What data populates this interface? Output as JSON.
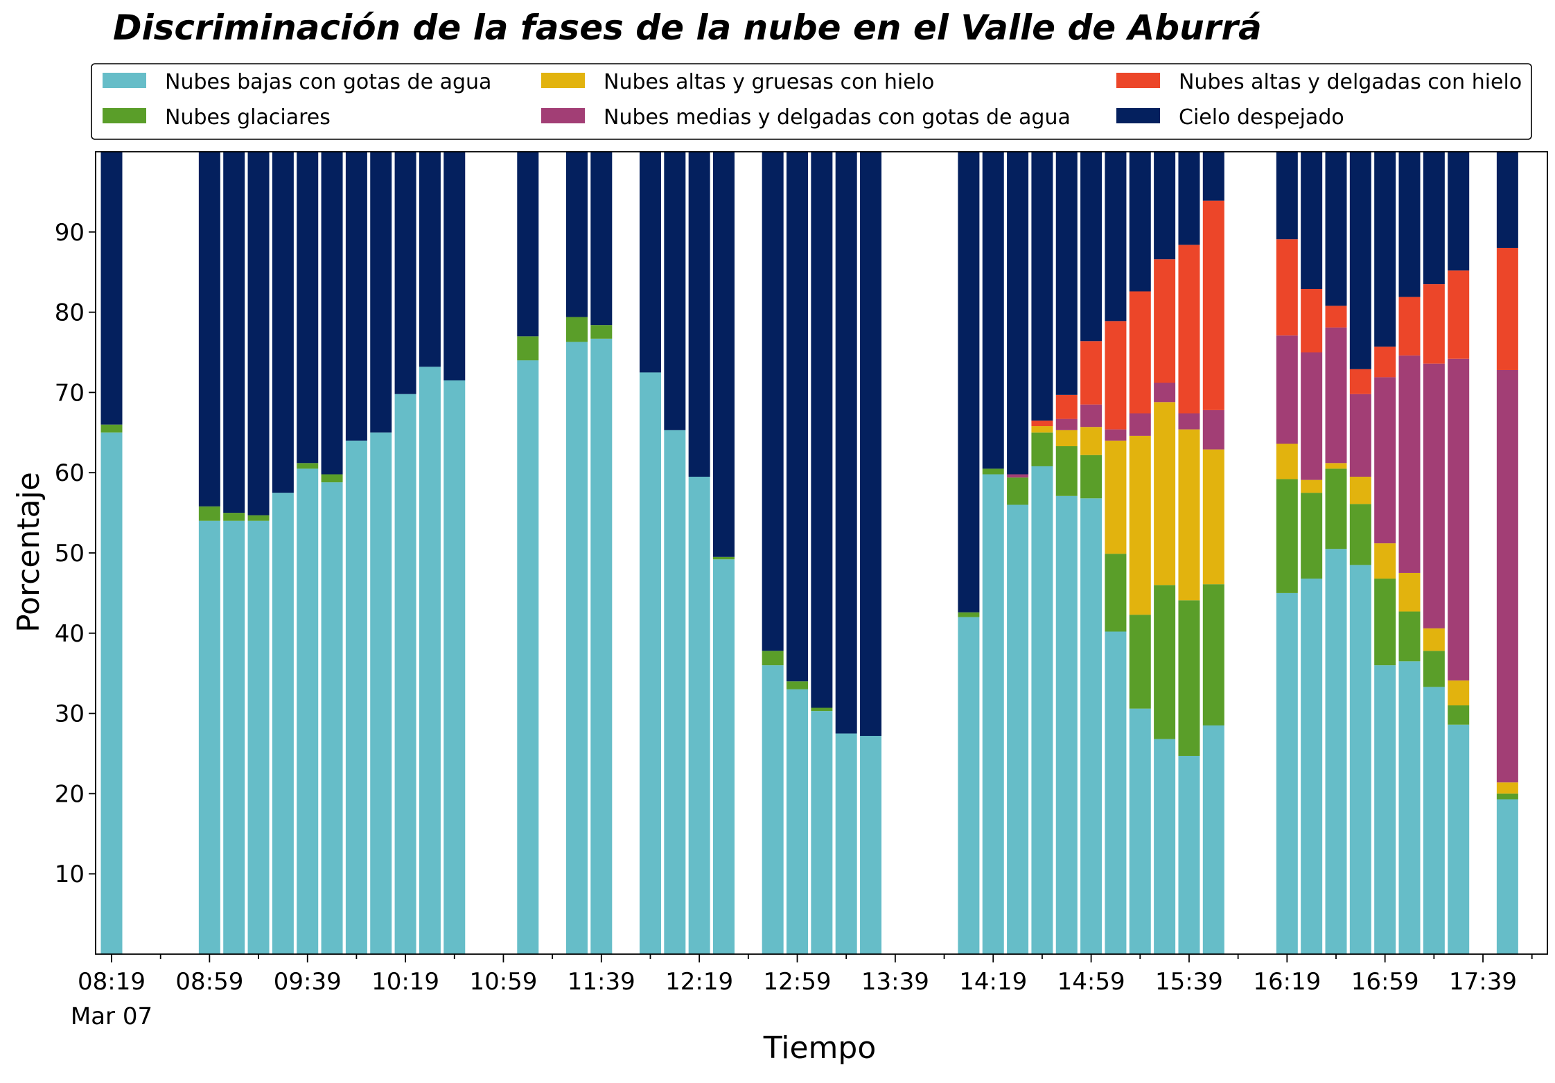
{
  "chart_data": {
    "type": "bar",
    "stacked": true,
    "title": "Discriminación de la fases de la nube en el Valle de Aburrá",
    "xlabel": "Tiempo",
    "ylabel": "Porcentaje",
    "ylim": [
      0,
      100
    ],
    "yticks": [
      10,
      20,
      30,
      40,
      50,
      60,
      70,
      80,
      90
    ],
    "x_major_ticks": [
      {
        "slot": 0,
        "label": "08:19",
        "sublabel": "Mar 07"
      },
      {
        "slot": 4,
        "label": "08:59"
      },
      {
        "slot": 8,
        "label": "09:39"
      },
      {
        "slot": 12,
        "label": "10:19"
      },
      {
        "slot": 16,
        "label": "10:59"
      },
      {
        "slot": 20,
        "label": "11:39"
      },
      {
        "slot": 24,
        "label": "12:19"
      },
      {
        "slot": 28,
        "label": "12:59"
      },
      {
        "slot": 32,
        "label": "13:39"
      },
      {
        "slot": 36,
        "label": "14:19"
      },
      {
        "slot": 40,
        "label": "14:59"
      },
      {
        "slot": 44,
        "label": "15:39"
      },
      {
        "slot": 48,
        "label": "16:19"
      },
      {
        "slot": 52,
        "label": "16:59"
      },
      {
        "slot": 56,
        "label": "17:39"
      }
    ],
    "slot_minutes": 10,
    "num_slots": 59,
    "legend_position": "top, below title (3 columns)",
    "grid": false,
    "series": [
      {
        "name": "Nubes bajas con gotas de agua",
        "color": "#66bdc8"
      },
      {
        "name": "Nubes glaciares",
        "color": "#5a9e29"
      },
      {
        "name": "Nubes altas y gruesas con hielo",
        "color": "#e2b30e"
      },
      {
        "name": "Nubes medias y delgadas con gotas de agua",
        "color": "#a23e75"
      },
      {
        "name": "Nubes altas y delgadas con hielo",
        "color": "#ec4629"
      },
      {
        "name": "Cielo despejado",
        "color": "#04205e"
      }
    ],
    "bars": [
      {
        "slot": 0,
        "values": [
          65,
          1,
          0,
          0,
          0,
          34
        ]
      },
      {
        "slot": 4,
        "values": [
          54,
          1.8,
          0,
          0,
          0,
          44.2
        ]
      },
      {
        "slot": 5,
        "values": [
          54,
          1,
          0,
          0,
          0,
          45
        ]
      },
      {
        "slot": 6,
        "values": [
          54,
          0.7,
          0,
          0,
          0,
          45.3
        ]
      },
      {
        "slot": 7,
        "values": [
          57.5,
          0,
          0,
          0,
          0,
          42.5
        ]
      },
      {
        "slot": 8,
        "values": [
          60.5,
          0.7,
          0,
          0,
          0,
          38.8
        ]
      },
      {
        "slot": 9,
        "values": [
          58.8,
          1,
          0,
          0,
          0,
          40.2
        ]
      },
      {
        "slot": 10,
        "values": [
          64,
          0,
          0,
          0,
          0,
          36
        ]
      },
      {
        "slot": 11,
        "values": [
          65,
          0,
          0,
          0,
          0,
          35
        ]
      },
      {
        "slot": 12,
        "values": [
          69.8,
          0,
          0,
          0,
          0,
          30.2
        ]
      },
      {
        "slot": 13,
        "values": [
          73.2,
          0,
          0,
          0,
          0,
          26.8
        ]
      },
      {
        "slot": 14,
        "values": [
          71.5,
          0,
          0,
          0,
          0,
          28.5
        ]
      },
      {
        "slot": 17,
        "values": [
          74,
          3,
          0,
          0,
          0,
          23
        ]
      },
      {
        "slot": 19,
        "values": [
          76.3,
          3.1,
          0,
          0,
          0,
          20.6
        ]
      },
      {
        "slot": 20,
        "values": [
          76.7,
          1.7,
          0,
          0,
          0,
          21.6
        ]
      },
      {
        "slot": 22,
        "values": [
          72.5,
          0,
          0,
          0,
          0,
          27.5
        ]
      },
      {
        "slot": 23,
        "values": [
          65.3,
          0,
          0,
          0,
          0,
          34.7
        ]
      },
      {
        "slot": 24,
        "values": [
          59.5,
          0,
          0,
          0,
          0,
          40.5
        ]
      },
      {
        "slot": 25,
        "values": [
          49.2,
          0.3,
          0,
          0,
          0,
          50.5
        ]
      },
      {
        "slot": 27,
        "values": [
          36,
          1.8,
          0,
          0,
          0,
          62.2
        ]
      },
      {
        "slot": 28,
        "values": [
          33,
          1,
          0,
          0,
          0,
          66
        ]
      },
      {
        "slot": 29,
        "values": [
          30.3,
          0.4,
          0,
          0,
          0,
          69.3
        ]
      },
      {
        "slot": 30,
        "values": [
          27.5,
          0,
          0,
          0,
          0,
          72.5
        ]
      },
      {
        "slot": 31,
        "values": [
          27.2,
          0,
          0,
          0,
          0,
          72.8
        ]
      },
      {
        "slot": 35,
        "values": [
          42,
          0.6,
          0,
          0,
          0,
          57.4
        ]
      },
      {
        "slot": 36,
        "values": [
          59.8,
          0.7,
          0,
          0,
          0,
          39.5
        ]
      },
      {
        "slot": 37,
        "values": [
          56,
          3.4,
          0,
          0.4,
          0,
          40.2
        ]
      },
      {
        "slot": 38,
        "values": [
          60.8,
          4.2,
          0.8,
          0,
          0.7,
          33.5
        ]
      },
      {
        "slot": 39,
        "values": [
          57.1,
          6.2,
          2,
          1.4,
          3,
          30.3
        ]
      },
      {
        "slot": 40,
        "values": [
          56.8,
          5.4,
          3.5,
          2.8,
          7.9,
          23.6
        ]
      },
      {
        "slot": 41,
        "values": [
          40.2,
          9.7,
          14.1,
          1.4,
          13.5,
          21.1
        ]
      },
      {
        "slot": 42,
        "values": [
          30.6,
          11.7,
          22.3,
          2.8,
          15.2,
          17.4
        ]
      },
      {
        "slot": 43,
        "values": [
          26.8,
          19.2,
          22.8,
          2.4,
          15.4,
          13.4
        ]
      },
      {
        "slot": 44,
        "values": [
          24.7,
          19.4,
          21.3,
          2,
          21,
          11.6
        ]
      },
      {
        "slot": 45,
        "values": [
          28.5,
          17.6,
          16.8,
          4.9,
          26.1,
          6.1
        ]
      },
      {
        "slot": 48,
        "values": [
          45,
          14.2,
          4.4,
          13.5,
          12,
          10.9
        ]
      },
      {
        "slot": 49,
        "values": [
          46.8,
          10.7,
          1.6,
          15.9,
          7.9,
          17.1
        ]
      },
      {
        "slot": 50,
        "values": [
          50.5,
          10,
          0.7,
          16.9,
          2.7,
          19.2
        ]
      },
      {
        "slot": 51,
        "values": [
          48.5,
          7.6,
          3.4,
          10.3,
          3.1,
          27.1
        ]
      },
      {
        "slot": 52,
        "values": [
          36,
          10.8,
          4.4,
          20.7,
          3.8,
          24.3
        ]
      },
      {
        "slot": 53,
        "values": [
          36.5,
          6.2,
          4.8,
          27.1,
          7.3,
          18.1
        ]
      },
      {
        "slot": 54,
        "values": [
          33.3,
          4.5,
          2.8,
          33,
          9.9,
          16.5
        ]
      },
      {
        "slot": 55,
        "values": [
          28.6,
          2.4,
          3.1,
          40.1,
          11,
          14.8
        ]
      },
      {
        "slot": 57,
        "values": [
          19.3,
          0.7,
          1.4,
          51.4,
          15.2,
          12
        ]
      }
    ]
  }
}
